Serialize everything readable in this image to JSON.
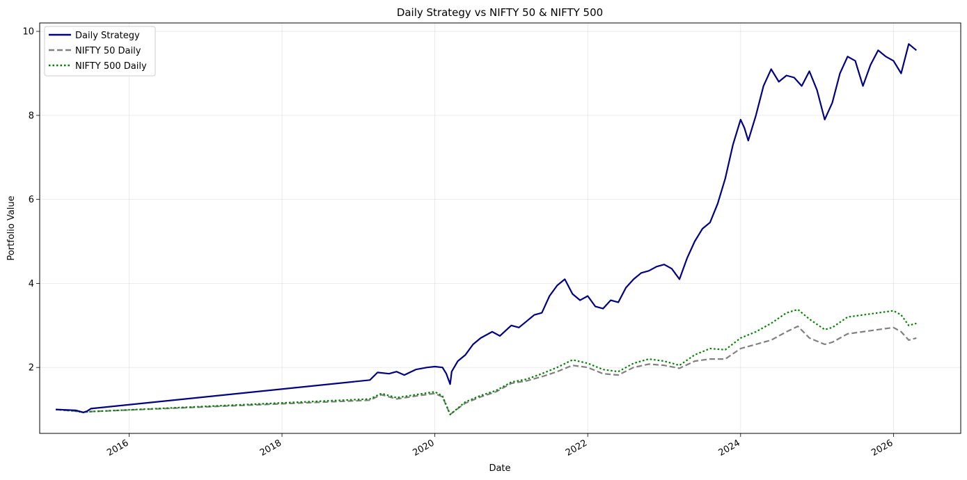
{
  "chart_data": {
    "type": "line",
    "title": "Daily Strategy vs NIFTY 50 & NIFTY 500",
    "xlabel": "Date",
    "ylabel": "Portfolio Value",
    "xlim": [
      2014.83,
      2026.88
    ],
    "ylim": [
      0.43,
      10.2
    ],
    "x_ticks": [
      2016,
      2018,
      2020,
      2022,
      2024,
      2026
    ],
    "x_tick_labels": [
      "2016",
      "2018",
      "2020",
      "2022",
      "2024",
      "2026"
    ],
    "y_ticks": [
      2,
      4,
      6,
      8,
      10
    ],
    "y_tick_labels": [
      "2",
      "4",
      "6",
      "8",
      "10"
    ],
    "grid": true,
    "legend_position": "top-left",
    "series": [
      {
        "name": "Daily Strategy",
        "color": "#000080",
        "style": "solid",
        "x": [
          2015.04,
          2015.3,
          2015.4,
          2015.45,
          2015.5,
          2019.15,
          2019.25,
          2019.4,
          2019.5,
          2019.6,
          2019.75,
          2019.9,
          2020.0,
          2020.1,
          2020.15,
          2020.2,
          2020.22,
          2020.3,
          2020.4,
          2020.5,
          2020.6,
          2020.75,
          2020.85,
          2021.0,
          2021.1,
          2021.2,
          2021.3,
          2021.4,
          2021.5,
          2021.6,
          2021.7,
          2021.8,
          2021.9,
          2022.0,
          2022.1,
          2022.2,
          2022.3,
          2022.4,
          2022.5,
          2022.6,
          2022.7,
          2022.8,
          2022.9,
          2023.0,
          2023.1,
          2023.2,
          2023.3,
          2023.4,
          2023.5,
          2023.6,
          2023.7,
          2023.8,
          2023.9,
          2024.0,
          2024.05,
          2024.1,
          2024.2,
          2024.3,
          2024.4,
          2024.5,
          2024.6,
          2024.7,
          2024.8,
          2024.9,
          2025.0,
          2025.1,
          2025.2,
          2025.3,
          2025.4,
          2025.5,
          2025.6,
          2025.7,
          2025.8,
          2025.9,
          2026.0,
          2026.1,
          2026.2,
          2026.3
        ],
        "y": [
          1.0,
          0.98,
          0.93,
          0.96,
          1.02,
          1.7,
          1.88,
          1.85,
          1.9,
          1.82,
          1.95,
          2.0,
          2.02,
          2.0,
          1.85,
          1.6,
          1.9,
          2.15,
          2.3,
          2.55,
          2.7,
          2.85,
          2.75,
          3.0,
          2.95,
          3.1,
          3.25,
          3.3,
          3.7,
          3.95,
          4.1,
          3.75,
          3.6,
          3.7,
          3.45,
          3.4,
          3.6,
          3.55,
          3.9,
          4.1,
          4.25,
          4.3,
          4.4,
          4.45,
          4.35,
          4.1,
          4.6,
          5.0,
          5.3,
          5.45,
          5.9,
          6.5,
          7.3,
          7.9,
          7.7,
          7.4,
          8.0,
          8.7,
          9.1,
          8.8,
          8.95,
          8.9,
          8.7,
          9.05,
          8.6,
          7.9,
          8.3,
          9.0,
          9.4,
          9.3,
          8.7,
          9.2,
          9.55,
          9.4,
          9.3,
          9.0,
          9.7,
          9.55
        ]
      },
      {
        "name": "NIFTY 50 Daily",
        "color": "#808080",
        "style": "dashed",
        "x": [
          2015.04,
          2015.3,
          2015.4,
          2015.5,
          2019.15,
          2019.3,
          2019.5,
          2019.75,
          2020.0,
          2020.1,
          2020.2,
          2020.3,
          2020.4,
          2020.6,
          2020.8,
          2021.0,
          2021.2,
          2021.4,
          2021.6,
          2021.8,
          2022.0,
          2022.2,
          2022.4,
          2022.6,
          2022.8,
          2023.0,
          2023.2,
          2023.4,
          2023.6,
          2023.8,
          2024.0,
          2024.2,
          2024.4,
          2024.6,
          2024.75,
          2024.9,
          2025.1,
          2025.2,
          2025.4,
          2025.6,
          2025.8,
          2026.0,
          2026.1,
          2026.2,
          2026.3
        ],
        "y": [
          1.0,
          0.96,
          0.93,
          0.95,
          1.22,
          1.35,
          1.25,
          1.32,
          1.38,
          1.3,
          0.88,
          1.02,
          1.15,
          1.3,
          1.42,
          1.62,
          1.68,
          1.78,
          1.9,
          2.05,
          2.0,
          1.85,
          1.82,
          2.0,
          2.08,
          2.05,
          1.98,
          2.15,
          2.2,
          2.2,
          2.45,
          2.55,
          2.65,
          2.85,
          2.98,
          2.7,
          2.55,
          2.6,
          2.8,
          2.85,
          2.9,
          2.95,
          2.85,
          2.65,
          2.7
        ]
      },
      {
        "name": "NIFTY 500 Daily",
        "color": "#008000",
        "style": "dotted",
        "x": [
          2015.04,
          2015.3,
          2015.4,
          2015.5,
          2019.15,
          2019.3,
          2019.5,
          2019.75,
          2020.0,
          2020.1,
          2020.2,
          2020.3,
          2020.4,
          2020.6,
          2020.8,
          2021.0,
          2021.2,
          2021.4,
          2021.6,
          2021.8,
          2022.0,
          2022.2,
          2022.4,
          2022.6,
          2022.8,
          2023.0,
          2023.2,
          2023.4,
          2023.6,
          2023.8,
          2024.0,
          2024.2,
          2024.4,
          2024.6,
          2024.75,
          2024.9,
          2025.1,
          2025.2,
          2025.4,
          2025.6,
          2025.8,
          2026.0,
          2026.1,
          2026.2,
          2026.3
        ],
        "y": [
          1.0,
          0.96,
          0.93,
          0.95,
          1.25,
          1.38,
          1.28,
          1.35,
          1.42,
          1.32,
          0.88,
          1.03,
          1.18,
          1.33,
          1.45,
          1.65,
          1.72,
          1.85,
          2.0,
          2.18,
          2.1,
          1.95,
          1.9,
          2.1,
          2.2,
          2.15,
          2.05,
          2.3,
          2.45,
          2.42,
          2.7,
          2.85,
          3.05,
          3.3,
          3.38,
          3.15,
          2.9,
          2.95,
          3.2,
          3.25,
          3.3,
          3.35,
          3.25,
          3.0,
          3.05
        ]
      }
    ]
  }
}
